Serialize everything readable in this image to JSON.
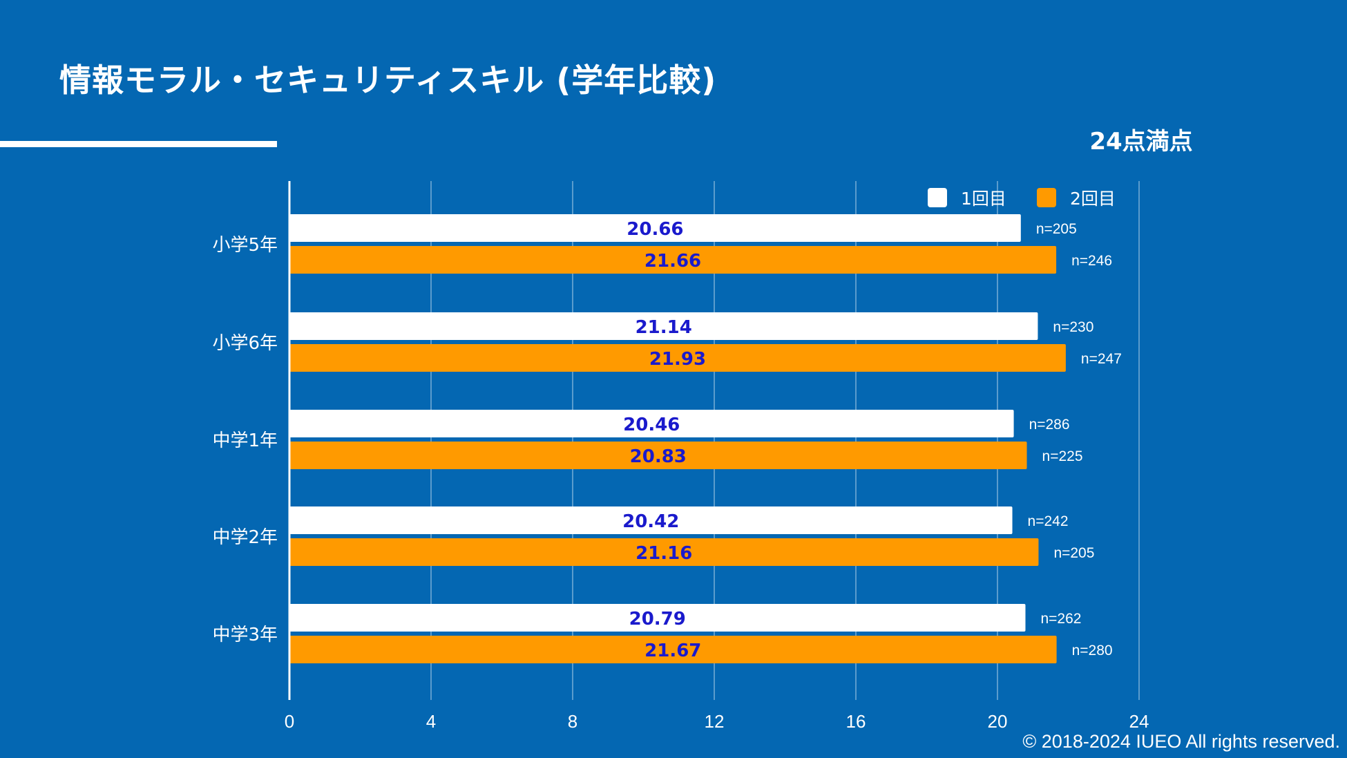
{
  "title": "情報モラル・セキュリティスキル (学年比較)",
  "note": "24点満点",
  "copyright": "© 2018-2024 IUEO All rights reserved.",
  "colors": {
    "background": "#0467b2",
    "series1": "#ffffff",
    "series2": "#ff9a00",
    "value_label": "#1a1acc",
    "text": "#ffffff"
  },
  "chart_data": {
    "type": "bar",
    "orientation": "horizontal",
    "title": "情報モラル・セキュリティスキル (学年比較)",
    "categories": [
      "小学5年",
      "小学6年",
      "中学1年",
      "中学2年",
      "中学3年"
    ],
    "series": [
      {
        "name": "1回目",
        "values": [
          20.66,
          21.14,
          20.46,
          20.42,
          20.79
        ],
        "n": [
          "n=205",
          "n=230",
          "n=286",
          "n=242",
          "n=262"
        ]
      },
      {
        "name": "2回目",
        "values": [
          21.66,
          21.93,
          20.83,
          21.16,
          21.67
        ],
        "n": [
          "n=246",
          "n=247",
          "n=225",
          "n=205",
          "n=280"
        ]
      }
    ],
    "xlim": [
      0,
      24
    ],
    "xticks": [
      "0",
      "4",
      "8",
      "12",
      "16",
      "20",
      "24"
    ],
    "grid": true,
    "legend": "top-right"
  }
}
